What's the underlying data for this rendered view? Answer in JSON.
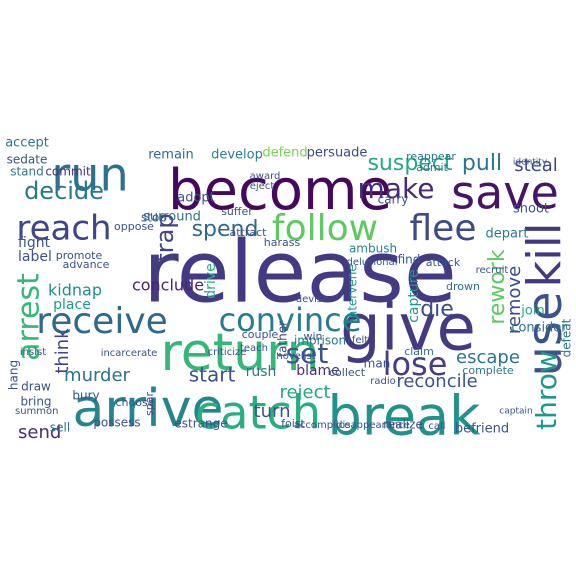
{
  "word_cloud": {
    "background": "#ffffff",
    "words": [
      {
        "text": "release",
        "color": "#443a83"
      },
      {
        "text": "become",
        "color": "#46085c"
      },
      {
        "text": "return",
        "color": "#35b779"
      },
      {
        "text": "give",
        "color": "#443a83"
      },
      {
        "text": "arrive",
        "color": "#25858e"
      },
      {
        "text": "break",
        "color": "#21918c"
      },
      {
        "text": "catch",
        "color": "#29af7f"
      },
      {
        "text": "save",
        "color": "#481467"
      },
      {
        "text": "follow",
        "color": "#5ec962"
      },
      {
        "text": "reach",
        "color": "#414487"
      },
      {
        "text": "run",
        "color": "#2c728e"
      },
      {
        "text": "flee",
        "color": "#3e4a89"
      },
      {
        "text": "convince",
        "color": "#287c8e"
      },
      {
        "text": "receive",
        "color": "#31688e"
      },
      {
        "text": "decide",
        "color": "#2a788e"
      },
      {
        "text": "use",
        "color": "#3b528b"
      },
      {
        "text": "kill",
        "color": "#453781"
      },
      {
        "text": "arrest",
        "color": "#35b779"
      },
      {
        "text": "throw",
        "color": "#1f988b"
      },
      {
        "text": "make",
        "color": "#482878"
      },
      {
        "text": "set",
        "color": "#3a538b"
      },
      {
        "text": "lose",
        "color": "#433e85"
      },
      {
        "text": "spend",
        "color": "#31688e"
      },
      {
        "text": "rework",
        "color": "#5ec962"
      },
      {
        "text": "suspect",
        "color": "#22a884"
      },
      {
        "text": "pull",
        "color": "#2a788e"
      },
      {
        "text": "steal",
        "color": "#3f4788"
      },
      {
        "text": "escape",
        "color": "#2c728e"
      },
      {
        "text": "remove",
        "color": "#3e4989"
      },
      {
        "text": "trap",
        "color": "#414487"
      },
      {
        "text": "start",
        "color": "#3b528b"
      },
      {
        "text": "murder",
        "color": "#2c728e"
      },
      {
        "text": "turn",
        "color": "#3b528b"
      },
      {
        "text": "reject",
        "color": "#22a884"
      },
      {
        "text": "send",
        "color": "#472c7a"
      },
      {
        "text": "think",
        "color": "#414487"
      },
      {
        "text": "die",
        "color": "#3e4a89"
      },
      {
        "text": "reconcile",
        "color": "#3b528b"
      },
      {
        "text": "kidnap",
        "color": "#21918c"
      },
      {
        "text": "conclude",
        "color": "#482475"
      },
      {
        "text": "place",
        "color": "#1f9a8a"
      },
      {
        "text": "fight",
        "color": "#3b528b"
      },
      {
        "text": "label",
        "color": "#3b528b"
      },
      {
        "text": "decide",
        "color": "#2a788e"
      },
      {
        "text": "surround",
        "color": "#2c728e"
      },
      {
        "text": "adopt",
        "color": "#3b528b"
      },
      {
        "text": "develop",
        "color": "#26828e"
      },
      {
        "text": "defend",
        "color": "#7ad151"
      },
      {
        "text": "persuade",
        "color": "#3e4a89"
      },
      {
        "text": "remain",
        "color": "#31688e"
      },
      {
        "text": "accept",
        "color": "#2a788e"
      },
      {
        "text": "sedate",
        "color": "#3b528b"
      },
      {
        "text": "stand",
        "color": "#2a788e"
      },
      {
        "text": "commit",
        "color": "#472d7b"
      },
      {
        "text": "capture",
        "color": "#1f988b"
      },
      {
        "text": "ambush",
        "color": "#25858e"
      },
      {
        "text": "blame",
        "color": "#46317e"
      },
      {
        "text": "rush",
        "color": "#2a788e"
      },
      {
        "text": "drive",
        "color": "#29af7f"
      },
      {
        "text": "father",
        "color": "#3f4788"
      },
      {
        "text": "intervene",
        "color": "#1f9a8a"
      },
      {
        "text": "imprison",
        "color": "#2a788e"
      },
      {
        "text": "depart",
        "color": "#2a788e"
      },
      {
        "text": "join",
        "color": "#22a884"
      },
      {
        "text": "shoot",
        "color": "#3b528b"
      },
      {
        "text": "consider",
        "color": "#2c728e"
      },
      {
        "text": "defeat",
        "color": "#2a788e"
      },
      {
        "text": "complete",
        "color": "#2a788e"
      },
      {
        "text": "befriend",
        "color": "#3b528b"
      },
      {
        "text": "realize",
        "color": "#3e4a89"
      },
      {
        "text": "estrange",
        "color": "#3b528b"
      },
      {
        "text": "possess",
        "color": "#3b528b"
      },
      {
        "text": "bury",
        "color": "#3b528b"
      },
      {
        "text": "draw",
        "color": "#3b528b"
      },
      {
        "text": "bring",
        "color": "#3b528b"
      },
      {
        "text": "hang",
        "color": "#3b528b"
      },
      {
        "text": "sell",
        "color": "#2c728e"
      },
      {
        "text": "find",
        "color": "#3b528b"
      },
      {
        "text": "carry",
        "color": "#3b528b"
      },
      {
        "text": "man",
        "color": "#3b528b"
      },
      {
        "text": "admit",
        "color": "#2c728e"
      },
      {
        "text": "reappear",
        "color": "#2c728e"
      },
      {
        "text": "attack",
        "color": "#3b528b"
      },
      {
        "text": "drown",
        "color": "#2c728e"
      },
      {
        "text": "claim",
        "color": "#2c728e"
      },
      {
        "text": "couple",
        "color": "#3b528b"
      },
      {
        "text": "win",
        "color": "#3b528b"
      },
      {
        "text": "felt",
        "color": "#3b528b"
      },
      {
        "text": "stop",
        "color": "#3b528b"
      },
      {
        "text": "oppose",
        "color": "#3b528b"
      },
      {
        "text": "promote",
        "color": "#3b528b"
      },
      {
        "text": "advance",
        "color": "#3b528b"
      },
      {
        "text": "insist",
        "color": "#3b528b"
      },
      {
        "text": "incarcerate",
        "color": "#3b528b"
      },
      {
        "text": "spar",
        "color": "#3b528b"
      },
      {
        "text": "teach",
        "color": "#3b528b"
      },
      {
        "text": "collect",
        "color": "#3b528b"
      },
      {
        "text": "radio",
        "color": "#3b528b"
      },
      {
        "text": "foist",
        "color": "#3b528b"
      },
      {
        "text": "call",
        "color": "#3b528b"
      },
      {
        "text": "choose",
        "color": "#3b528b"
      },
      {
        "text": "summon",
        "color": "#3b528b"
      },
      {
        "text": "accomplice",
        "color": "#3b528b"
      },
      {
        "text": "disappearance",
        "color": "#3b528b"
      },
      {
        "text": "novelist",
        "color": "#3b528b"
      },
      {
        "text": "criticize",
        "color": "#3b528b"
      },
      {
        "text": "harass",
        "color": "#3b528b"
      },
      {
        "text": "attract",
        "color": "#3b528b"
      },
      {
        "text": "suffer",
        "color": "#3b528b"
      },
      {
        "text": "award",
        "color": "#3b528b"
      },
      {
        "text": "eject",
        "color": "#3b528b"
      },
      {
        "text": "delusional",
        "color": "#3b528b"
      },
      {
        "text": "devise",
        "color": "#3b528b"
      },
      {
        "text": "recruit",
        "color": "#3b528b"
      },
      {
        "text": "captain",
        "color": "#3b528b"
      },
      {
        "text": "identity",
        "color": "#3b528b"
      }
    ]
  }
}
